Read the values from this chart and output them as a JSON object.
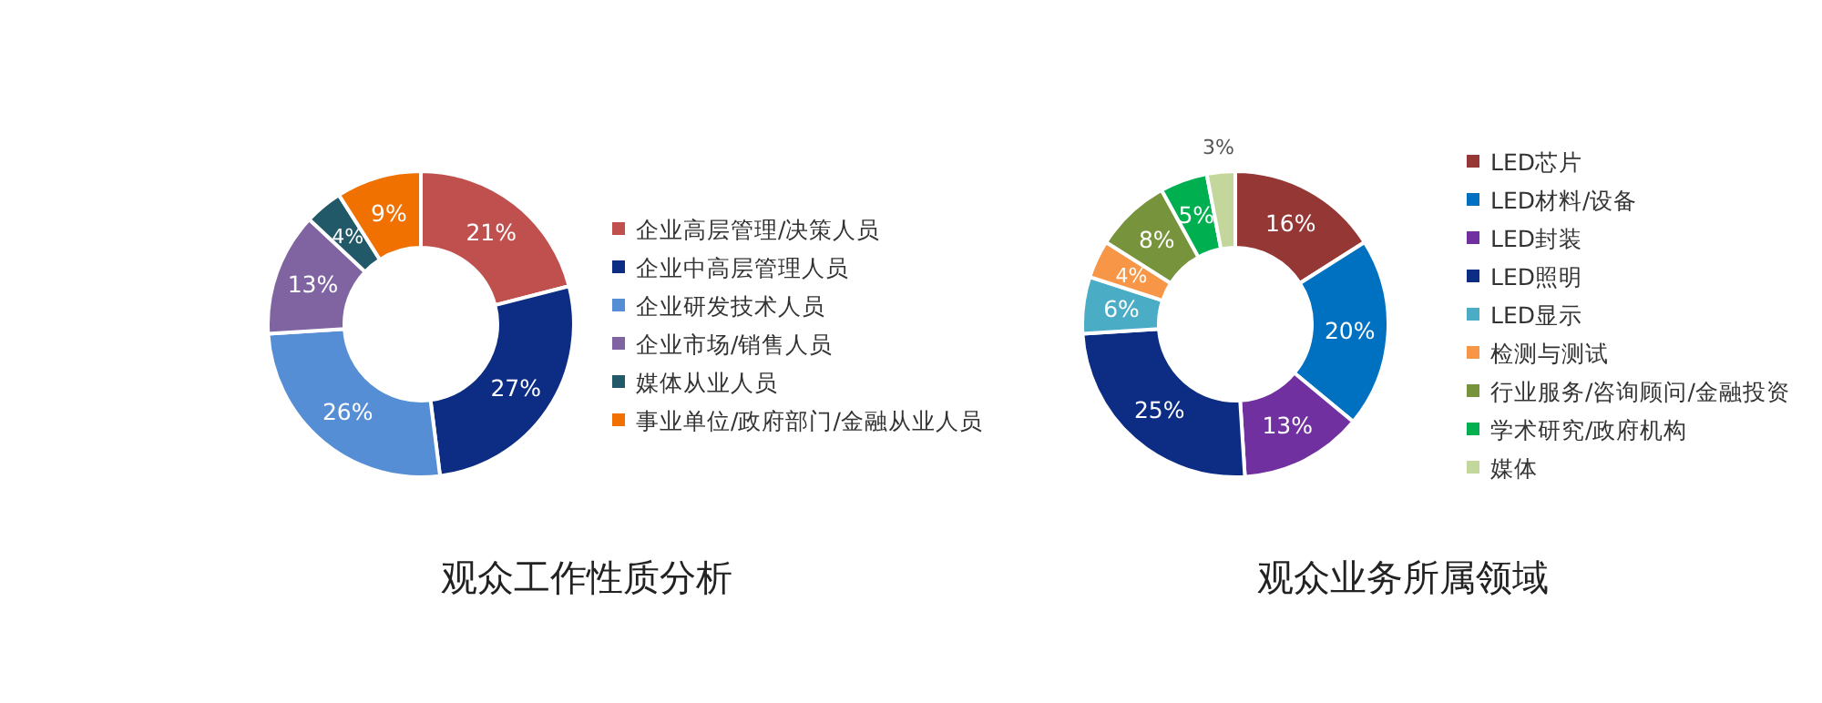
{
  "chart_data": [
    {
      "type": "donut",
      "title": "观众工作性质分析",
      "legend": "right",
      "categories": [
        "企业高层管理/决策人员",
        "企业中高层管理人员",
        "企业研发技术人员",
        "企业市场/销售人员",
        "媒体从业人员",
        "事业单位/政府部门/金融从业人员"
      ],
      "values": [
        21,
        27,
        26,
        13,
        4,
        9
      ],
      "value_labels": [
        "21%",
        "27%",
        "26%",
        "13%",
        "4%",
        "9%"
      ],
      "colors": [
        "#c0504d",
        "#0c2d83",
        "#558ed5",
        "#8064a2",
        "#215968",
        "#f07000"
      ]
    },
    {
      "type": "donut",
      "title": "观众业务所属领域",
      "legend": "right",
      "categories": [
        "LED芯片",
        "LED材料/设备",
        "LED封装",
        "LED照明",
        "LED显示",
        "检测与测试",
        "行业服务/咨询顾问/金融投资",
        "学术研究/政府机构",
        "媒体"
      ],
      "values": [
        16,
        20,
        13,
        25,
        6,
        4,
        8,
        5,
        3
      ],
      "value_labels": [
        "16%",
        "20%",
        "13%",
        "25%",
        "6%",
        "4%",
        "8%",
        "5%",
        "3%"
      ],
      "colors": [
        "#953735",
        "#0070c0",
        "#7030a0",
        "#0c2d83",
        "#4bacc6",
        "#f79646",
        "#77933c",
        "#00b050",
        "#c3d69b"
      ]
    }
  ]
}
